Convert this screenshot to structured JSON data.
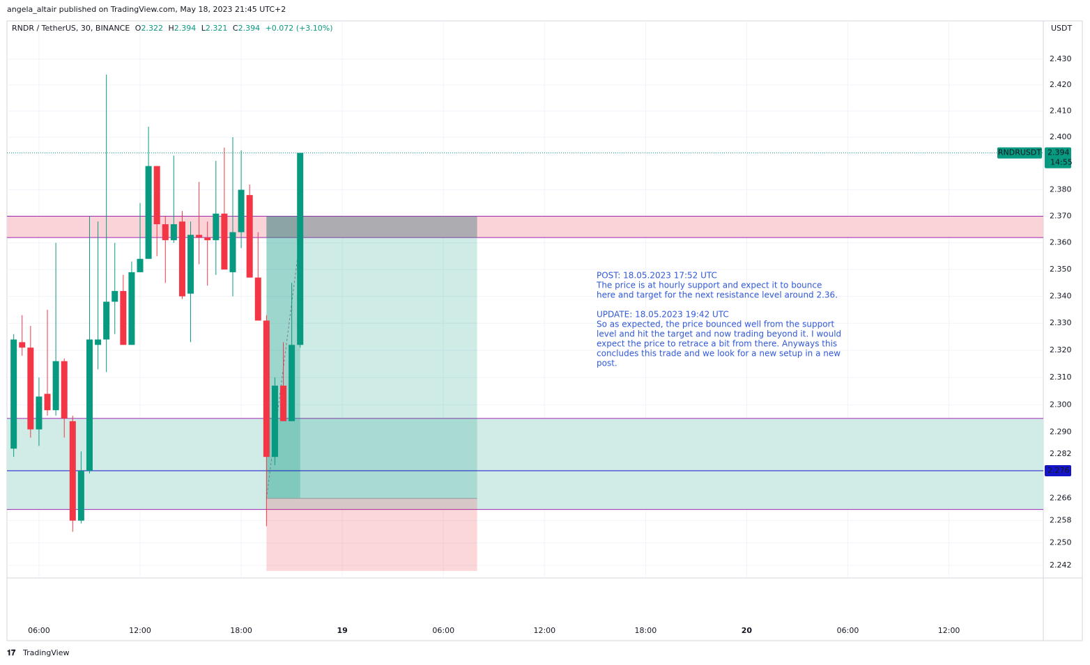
{
  "chart_data": {
    "type": "candlestick",
    "attribution": "angela_altair published on TradingView.com, May 18, 2023 21:45 UTC+2",
    "symbol": "RNDR / TetherUS, 30, BINANCE",
    "ohlc_legend": [
      {
        "label": "O",
        "value": 2.322
      },
      {
        "label": "H",
        "value": 2.394
      },
      {
        "label": "L",
        "value": 2.321
      },
      {
        "label": "C",
        "value": 2.394
      }
    ],
    "change": "+0.072 (+3.10%)",
    "currency": "USDT",
    "up_color": "#089981",
    "down_color": "#f23645",
    "log_scale": true,
    "grid": true,
    "x": [
      4.5,
      5,
      5.5,
      6,
      6.5,
      7,
      7.5,
      8,
      8.5,
      9,
      9.5,
      10,
      10.5,
      11,
      11.5,
      12,
      12.5,
      13,
      13.5,
      14,
      14.5,
      15,
      15.5,
      16,
      16.5,
      17,
      17.5,
      18,
      18.5,
      19,
      19.5,
      20,
      20.5,
      21,
      21.5
    ],
    "open": [
      2.284,
      2.323,
      2.321,
      2.291,
      2.304,
      2.298,
      2.316,
      2.294,
      2.258,
      2.276,
      2.322,
      2.324,
      2.338,
      2.342,
      2.322,
      2.349,
      2.354,
      2.389,
      2.367,
      2.361,
      2.368,
      2.341,
      2.363,
      2.362,
      2.361,
      2.371,
      2.349,
      2.364,
      2.378,
      2.347,
      2.331,
      2.281,
      2.307,
      2.294,
      2.322
    ],
    "high": [
      2.326,
      2.333,
      2.329,
      2.31,
      2.335,
      2.36,
      2.317,
      2.296,
      2.283,
      2.37,
      2.368,
      2.424,
      2.36,
      2.348,
      2.353,
      2.375,
      2.404,
      2.389,
      2.37,
      2.393,
      2.372,
      2.368,
      2.383,
      2.368,
      2.391,
      2.396,
      2.4,
      2.395,
      2.382,
      2.364,
      2.333,
      2.31,
      2.323,
      2.345,
      2.394
    ],
    "low": [
      2.281,
      2.318,
      2.288,
      2.285,
      2.296,
      2.296,
      2.288,
      2.254,
      2.257,
      2.275,
      2.313,
      2.312,
      2.326,
      2.322,
      2.322,
      2.349,
      2.354,
      2.355,
      2.345,
      2.36,
      2.339,
      2.323,
      2.352,
      2.344,
      2.348,
      2.351,
      2.34,
      2.358,
      2.347,
      2.331,
      2.256,
      2.278,
      2.294,
      2.294,
      2.321
    ],
    "close": [
      2.324,
      2.321,
      2.291,
      2.303,
      2.298,
      2.316,
      2.295,
      2.258,
      2.276,
      2.324,
      2.324,
      2.338,
      2.342,
      2.322,
      2.349,
      2.354,
      2.389,
      2.367,
      2.361,
      2.367,
      2.34,
      2.363,
      2.362,
      2.361,
      2.371,
      2.35,
      2.364,
      2.38,
      2.347,
      2.331,
      2.281,
      2.307,
      2.294,
      2.322,
      2.394
    ],
    "xlim": [
      4.1,
      65.6
    ],
    "ylim": [
      2.2375,
      2.4448
    ],
    "xticks": [
      {
        "value": 6,
        "label": "06:00"
      },
      {
        "value": 12,
        "label": "12:00"
      },
      {
        "value": 18,
        "label": "18:00"
      },
      {
        "value": 24,
        "label": "19"
      },
      {
        "value": 30,
        "label": "06:00"
      },
      {
        "value": 36,
        "label": "12:00"
      },
      {
        "value": 42,
        "label": "18:00"
      },
      {
        "value": 48,
        "label": "20"
      },
      {
        "value": 54,
        "label": "06:00"
      },
      {
        "value": 60,
        "label": "12:00"
      }
    ],
    "yticks": [
      {
        "value": 2.43,
        "label": "2.430"
      },
      {
        "value": 2.42,
        "label": "2.420"
      },
      {
        "value": 2.41,
        "label": "2.410"
      },
      {
        "value": 2.4,
        "label": "2.400"
      },
      {
        "value": 2.38,
        "label": "2.380"
      },
      {
        "value": 2.37,
        "label": "2.370"
      },
      {
        "value": 2.36,
        "label": "2.360"
      },
      {
        "value": 2.35,
        "label": "2.350"
      },
      {
        "value": 2.34,
        "label": "2.340"
      },
      {
        "value": 2.33,
        "label": "2.330"
      },
      {
        "value": 2.32,
        "label": "2.320"
      },
      {
        "value": 2.31,
        "label": "2.310"
      },
      {
        "value": 2.3,
        "label": "2.300"
      },
      {
        "value": 2.29,
        "label": "2.290"
      },
      2.282,
      2.266,
      2.258,
      {
        "value": 2.25,
        "label": "2.250"
      },
      2.242
    ],
    "zones": [
      {
        "low": 2.362,
        "high": 2.37,
        "color": "#f9d3d8",
        "border": "#9c27b0"
      },
      {
        "low": 2.262,
        "high": 2.295,
        "color": "#d1ece6",
        "border": "#9c27b0"
      }
    ],
    "level_line": {
      "value": 2.276,
      "color": "#1515c8"
    },
    "position": {
      "entry": 2.266,
      "target": 2.37,
      "stop": 2.24,
      "x_start": 19.5,
      "x_end": 32,
      "x_now": 21.5
    },
    "last_price": {
      "name": "RNDRUSDT",
      "value": 2.394,
      "countdown": "14:55"
    },
    "annotation": [
      "POST: 18.05.2023 17:52 UTC",
      "The price is at hourly support and expect it to bounce",
      "here and target for the next resistance level around 2.36.",
      "UPDATE: 18.05.2023 19:42 UTC",
      "So as expected, the price bounced well from the support",
      "level and hit the target and now trading beyond it. I would",
      "expect the price to retrace a bit from there. Anyways this",
      "concludes this trade and we look for a new setup in a new",
      "post."
    ],
    "footer": "TradingView"
  }
}
